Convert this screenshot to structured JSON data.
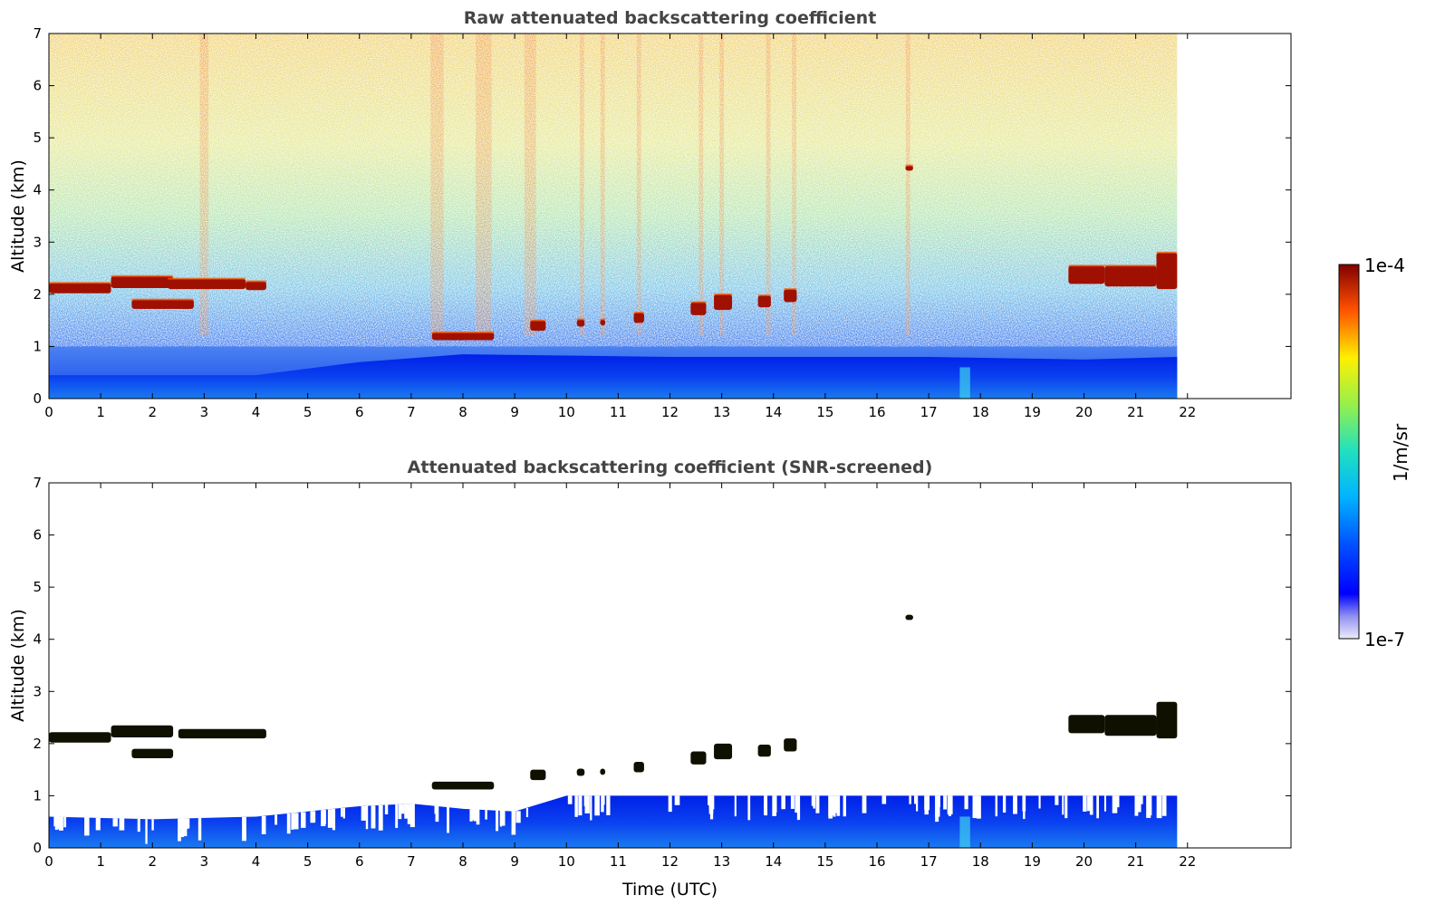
{
  "chart_data": [
    {
      "type": "heatmap",
      "title": "Raw attenuated backscattering coefficient",
      "xlabel": "",
      "ylabel": "Altitude (km)",
      "xlim": [
        0,
        24
      ],
      "ylim": [
        0,
        7
      ],
      "data_xlim": [
        0,
        21.8
      ],
      "x_ticks": [
        "0",
        "1",
        "2",
        "3",
        "4",
        "5",
        "6",
        "7",
        "8",
        "9",
        "10",
        "11",
        "12",
        "13",
        "14",
        "15",
        "16",
        "17",
        "18",
        "19",
        "20",
        "21",
        "22"
      ],
      "y_ticks": [
        "0",
        "1",
        "2",
        "3",
        "4",
        "5",
        "6",
        "7"
      ],
      "boundary_layer_top_km": [
        [
          0,
          0.45
        ],
        [
          4,
          0.45
        ],
        [
          6,
          0.7
        ],
        [
          8,
          0.85
        ],
        [
          12,
          0.8
        ],
        [
          17,
          0.8
        ],
        [
          20,
          0.75
        ],
        [
          21.8,
          0.8
        ]
      ],
      "cloud_layers": [
        {
          "x0": 0.0,
          "x1": 1.2,
          "y0": 2.02,
          "y1": 2.22
        },
        {
          "x0": 1.2,
          "x1": 2.4,
          "y0": 2.12,
          "y1": 2.35
        },
        {
          "x0": 1.6,
          "x1": 2.8,
          "y0": 1.72,
          "y1": 1.9
        },
        {
          "x0": 2.3,
          "x1": 3.8,
          "y0": 2.1,
          "y1": 2.3
        },
        {
          "x0": 3.8,
          "x1": 4.2,
          "y0": 2.08,
          "y1": 2.25
        },
        {
          "x0": 7.4,
          "x1": 8.6,
          "y0": 1.12,
          "y1": 1.27
        },
        {
          "x0": 9.3,
          "x1": 9.6,
          "y0": 1.3,
          "y1": 1.5
        },
        {
          "x0": 10.2,
          "x1": 10.35,
          "y0": 1.38,
          "y1": 1.52
        },
        {
          "x0": 10.65,
          "x1": 10.75,
          "y0": 1.4,
          "y1": 1.52
        },
        {
          "x0": 11.3,
          "x1": 11.5,
          "y0": 1.45,
          "y1": 1.65
        },
        {
          "x0": 12.4,
          "x1": 12.7,
          "y0": 1.6,
          "y1": 1.85
        },
        {
          "x0": 12.85,
          "x1": 13.2,
          "y0": 1.7,
          "y1": 2.0
        },
        {
          "x0": 13.7,
          "x1": 13.95,
          "y0": 1.75,
          "y1": 1.98
        },
        {
          "x0": 14.2,
          "x1": 14.45,
          "y0": 1.85,
          "y1": 2.1
        },
        {
          "x0": 16.55,
          "x1": 16.7,
          "y0": 4.37,
          "y1": 4.47
        },
        {
          "x0": 19.7,
          "x1": 20.4,
          "y0": 2.2,
          "y1": 2.55
        },
        {
          "x0": 20.4,
          "x1": 21.4,
          "y0": 2.15,
          "y1": 2.55
        },
        {
          "x0": 21.4,
          "x1": 21.8,
          "y0": 2.1,
          "y1": 2.8
        }
      ],
      "colorbar": {
        "label": "1/m/sr",
        "min_label": "1e-7",
        "max_label": "1e-4",
        "colormap": "jet",
        "scale": "log"
      }
    },
    {
      "type": "heatmap",
      "title": "Attenuated backscattering coefficient (SNR-screened)",
      "xlabel": "Time (UTC)",
      "ylabel": "Altitude (km)",
      "xlim": [
        0,
        24
      ],
      "ylim": [
        0,
        7
      ],
      "data_xlim": [
        0,
        21.8
      ],
      "x_ticks": [
        "0",
        "1",
        "2",
        "3",
        "4",
        "5",
        "6",
        "7",
        "8",
        "9",
        "10",
        "11",
        "12",
        "13",
        "14",
        "15",
        "16",
        "17",
        "18",
        "19",
        "20",
        "21",
        "22"
      ],
      "y_ticks": [
        "0",
        "1",
        "2",
        "3",
        "4",
        "5",
        "6",
        "7"
      ],
      "boundary_layer_top_km": [
        [
          0,
          0.6
        ],
        [
          2,
          0.55
        ],
        [
          4,
          0.6
        ],
        [
          6,
          0.8
        ],
        [
          7,
          0.85
        ],
        [
          8,
          0.75
        ],
        [
          9,
          0.7
        ],
        [
          10,
          1.0
        ],
        [
          12,
          1.0
        ],
        [
          17,
          1.0
        ],
        [
          21.8,
          1.0
        ]
      ],
      "cloud_layers": [
        {
          "x0": 0.0,
          "x1": 1.2,
          "y0": 2.02,
          "y1": 2.22
        },
        {
          "x0": 1.2,
          "x1": 2.4,
          "y0": 2.12,
          "y1": 2.35
        },
        {
          "x0": 1.6,
          "x1": 2.4,
          "y0": 1.72,
          "y1": 1.9
        },
        {
          "x0": 2.5,
          "x1": 4.2,
          "y0": 2.1,
          "y1": 2.28
        },
        {
          "x0": 7.4,
          "x1": 8.6,
          "y0": 1.12,
          "y1": 1.27
        },
        {
          "x0": 9.3,
          "x1": 9.6,
          "y0": 1.3,
          "y1": 1.5
        },
        {
          "x0": 10.2,
          "x1": 10.35,
          "y0": 1.38,
          "y1": 1.52
        },
        {
          "x0": 10.65,
          "x1": 10.75,
          "y0": 1.4,
          "y1": 1.52
        },
        {
          "x0": 11.3,
          "x1": 11.5,
          "y0": 1.45,
          "y1": 1.65
        },
        {
          "x0": 12.4,
          "x1": 12.7,
          "y0": 1.6,
          "y1": 1.85
        },
        {
          "x0": 12.85,
          "x1": 13.2,
          "y0": 1.7,
          "y1": 2.0
        },
        {
          "x0": 13.7,
          "x1": 13.95,
          "y0": 1.75,
          "y1": 1.98
        },
        {
          "x0": 14.2,
          "x1": 14.45,
          "y0": 1.85,
          "y1": 2.1
        },
        {
          "x0": 16.55,
          "x1": 16.7,
          "y0": 4.37,
          "y1": 4.47
        },
        {
          "x0": 19.7,
          "x1": 20.4,
          "y0": 2.2,
          "y1": 2.55
        },
        {
          "x0": 20.4,
          "x1": 21.4,
          "y0": 2.15,
          "y1": 2.55
        },
        {
          "x0": 21.4,
          "x1": 21.8,
          "y0": 2.1,
          "y1": 2.8
        }
      ],
      "colorbar": {
        "label": "1/m/sr",
        "min_label": "1e-7",
        "max_label": "1e-4",
        "colormap": "jet",
        "scale": "log"
      }
    }
  ]
}
